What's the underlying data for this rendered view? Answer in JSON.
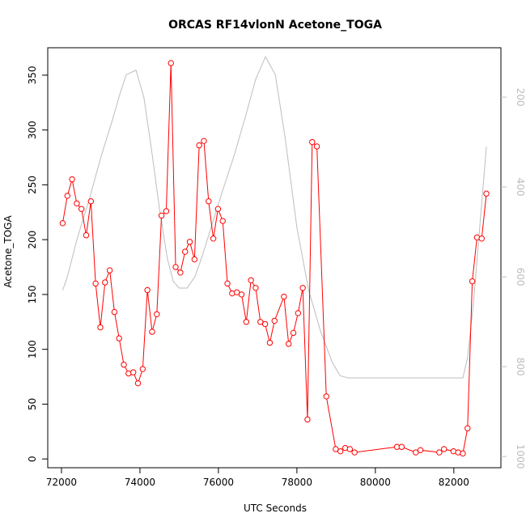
{
  "chart_data": {
    "type": "line",
    "title": "ORCAS RF14vlonN Acetone_TOGA",
    "xlabel": "UTC Seconds",
    "ylabel": "Acetone_TOGA",
    "xlim": [
      71650,
      83200
    ],
    "ylim": [
      -8,
      375
    ],
    "y2lim": [
      1025,
      90
    ],
    "x_ticks": [
      72000,
      74000,
      76000,
      78000,
      80000,
      82000
    ],
    "x_tick_labels": [
      "72000",
      "74000",
      "76000",
      "78000",
      "80000",
      "82000"
    ],
    "y_ticks": [
      0,
      50,
      100,
      150,
      200,
      250,
      300,
      350
    ],
    "y_tick_labels": [
      "0",
      "50",
      "100",
      "150",
      "200",
      "250",
      "300",
      "350"
    ],
    "y2_ticks": [
      200,
      400,
      600,
      800,
      1000
    ],
    "y2_tick_labels": [
      "200",
      "400",
      "600",
      "800",
      "1000"
    ],
    "grid": false,
    "series": [
      {
        "color": "#ff0000",
        "style": "line+open-circles",
        "x": [
          72030,
          72150,
          72270,
          72390,
          72510,
          72630,
          72750,
          72870,
          72990,
          73110,
          73230,
          73350,
          73470,
          73590,
          73710,
          73830,
          73950,
          74070,
          74190,
          74310,
          74430,
          74550,
          74670,
          74790,
          74910,
          75030,
          75150,
          75270,
          75390,
          75510,
          75630,
          75750,
          75870,
          75990,
          76110,
          76230,
          76350,
          76470,
          76590,
          76710,
          76830,
          76950,
          77070,
          77190,
          77310,
          77430,
          77670,
          77790,
          77910,
          78030,
          78150,
          78270,
          78390,
          78510,
          78750,
          78990,
          79110,
          79230,
          79350,
          79470,
          80550,
          80670,
          81030,
          81150,
          81630,
          81750,
          81990,
          82110,
          82230,
          82350,
          82470,
          82590,
          82710,
          82830
        ],
        "values": [
          215,
          240,
          255,
          233,
          228,
          204,
          235,
          160,
          120,
          161,
          172,
          134,
          110,
          86,
          78,
          79,
          69,
          82,
          154,
          116,
          132,
          222,
          226,
          361,
          175,
          170,
          189,
          198,
          182,
          286,
          290,
          235,
          201,
          228,
          217,
          160,
          151,
          152,
          150,
          125,
          163,
          156,
          125,
          123,
          106,
          126,
          148,
          105,
          115,
          133,
          156,
          36,
          289,
          285,
          57,
          9,
          7,
          10,
          9,
          6,
          11,
          11,
          6,
          8,
          6,
          9,
          7,
          6,
          5,
          28,
          162,
          202,
          201,
          242
        ]
      },
      {
        "color": "#bdbdbd",
        "axis": "right",
        "x": [
          72030,
          72150,
          72400,
          72700,
          73000,
          73300,
          73500,
          73650,
          73900,
          74100,
          74300,
          74500,
          74700,
          74850,
          75000,
          75200,
          75400,
          75600,
          75850,
          76100,
          76400,
          76700,
          76950,
          77200,
          77450,
          77700,
          78000,
          78300,
          78600,
          78900,
          79100,
          79300,
          80000,
          81000,
          82000,
          82230,
          82350,
          82500,
          82650,
          82830
        ],
        "values": [
          630,
          600,
          515,
          430,
          335,
          250,
          190,
          150,
          140,
          200,
          320,
          450,
          560,
          610,
          625,
          625,
          600,
          550,
          480,
          410,
          330,
          240,
          160,
          110,
          150,
          290,
          490,
          630,
          720,
          790,
          820,
          825,
          825,
          825,
          825,
          825,
          780,
          660,
          500,
          310
        ]
      }
    ]
  }
}
